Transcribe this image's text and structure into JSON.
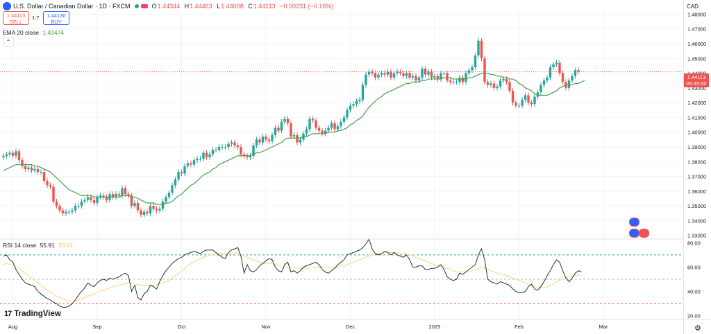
{
  "header": {
    "symbol_title": "U.S. Dollar / Canadian Dollar · 1D · FXCM",
    "ohlc": [
      {
        "key": "O",
        "value": "1.44344"
      },
      {
        "key": "H",
        "value": "1.44463"
      },
      {
        "key": "L",
        "value": "1.44008"
      },
      {
        "key": "C",
        "value": "1.44113"
      }
    ],
    "change": "−0.00231 (−0.16%)",
    "sell_price": "1.44113",
    "sell_label": "SELL",
    "buy_price": "1.44130",
    "buy_label": "BUY",
    "spread": "1.7"
  },
  "ema_legend": {
    "label": "EMA 20 close",
    "value": "1.43474"
  },
  "rsi_legend": {
    "label": "RSI 14 close",
    "value": "55.91",
    "ma_value": "53.41"
  },
  "currency": "CAD",
  "price_tag": {
    "price": "1.44113",
    "time": "09:45:00"
  },
  "logo_text": "TradingView",
  "colors": {
    "up": "#26a69a",
    "down": "#ef5350",
    "ema": "#43a047",
    "rsi": "#131722",
    "rsi_ma": "#f5d67a",
    "grid": "#f0f3fa"
  },
  "chart_data": [
    {
      "type": "candlestick",
      "title": "U.S. Dollar / Canadian Dollar · 1D · FXCM",
      "ylim": [
        1.328,
        1.483
      ],
      "y_ticks": [
        "1.48000",
        "1.47000",
        "1.46000",
        "1.45000",
        "1.44000",
        "1.43000",
        "1.42000",
        "1.41000",
        "1.40000",
        "1.39000",
        "1.38000",
        "1.37000",
        "1.36000",
        "1.35000",
        "1.34000",
        "1.33000"
      ],
      "x_ticks": [
        "Aug",
        "Sep",
        "Oct",
        "Nov",
        "Dec",
        "2025",
        "Feb",
        "Mar"
      ],
      "x_tick_index": [
        3,
        30,
        57,
        84,
        111,
        138,
        165,
        192
      ],
      "closes": [
        1.384,
        1.385,
        1.386,
        1.384,
        1.387,
        1.381,
        1.377,
        1.375,
        1.376,
        1.374,
        1.375,
        1.373,
        1.373,
        1.367,
        1.364,
        1.363,
        1.353,
        1.35,
        1.347,
        1.345,
        1.346,
        1.346,
        1.347,
        1.35,
        1.35,
        1.353,
        1.354,
        1.356,
        1.354,
        1.352,
        1.356,
        1.357,
        1.356,
        1.354,
        1.358,
        1.356,
        1.358,
        1.357,
        1.362,
        1.358,
        1.357,
        1.35,
        1.352,
        1.347,
        1.344,
        1.346,
        1.345,
        1.35,
        1.348,
        1.347,
        1.348,
        1.353,
        1.356,
        1.359,
        1.364,
        1.368,
        1.373,
        1.372,
        1.377,
        1.379,
        1.378,
        1.381,
        1.382,
        1.382,
        1.386,
        1.383,
        1.385,
        1.388,
        1.388,
        1.39,
        1.39,
        1.39,
        1.392,
        1.393,
        1.391,
        1.39,
        1.385,
        1.384,
        1.383,
        1.384,
        1.391,
        1.395,
        1.393,
        1.397,
        1.395,
        1.394,
        1.398,
        1.403,
        1.401,
        1.407,
        1.409,
        1.406,
        1.397,
        1.398,
        1.393,
        1.395,
        1.399,
        1.402,
        1.409,
        1.408,
        1.403,
        1.401,
        1.399,
        1.401,
        1.403,
        1.406,
        1.402,
        1.404,
        1.407,
        1.41,
        1.415,
        1.418,
        1.419,
        1.421,
        1.422,
        1.432,
        1.439,
        1.441,
        1.44,
        1.437,
        1.439,
        1.44,
        1.439,
        1.441,
        1.437,
        1.44,
        1.441,
        1.44,
        1.438,
        1.44,
        1.437,
        1.438,
        1.435,
        1.437,
        1.443,
        1.439,
        1.441,
        1.437,
        1.438,
        1.436,
        1.44,
        1.44,
        1.435,
        1.434,
        1.434,
        1.434,
        1.437,
        1.434,
        1.44,
        1.442,
        1.444,
        1.452,
        1.462,
        1.45,
        1.434,
        1.432,
        1.433,
        1.43,
        1.431,
        1.435,
        1.436,
        1.434,
        1.428,
        1.42,
        1.418,
        1.418,
        1.422,
        1.425,
        1.42,
        1.419,
        1.424,
        1.427,
        1.432,
        1.435,
        1.437,
        1.444,
        1.446,
        1.447,
        1.44,
        1.434,
        1.43,
        1.435,
        1.438,
        1.442,
        1.441
      ],
      "series": [
        {
          "name": "EMA 20 close",
          "values": [
            1.374,
            1.375,
            1.376,
            1.377,
            1.378,
            1.378,
            1.378,
            1.378,
            1.378,
            1.378,
            1.377,
            1.377,
            1.376,
            1.375,
            1.374,
            1.373,
            1.371,
            1.369,
            1.367,
            1.365,
            1.363,
            1.361,
            1.36,
            1.359,
            1.358,
            1.357,
            1.357,
            1.357,
            1.357,
            1.356,
            1.356,
            1.356,
            1.356,
            1.356,
            1.356,
            1.356,
            1.356,
            1.356,
            1.357,
            1.357,
            1.357,
            1.356,
            1.356,
            1.355,
            1.354,
            1.353,
            1.352,
            1.352,
            1.352,
            1.351,
            1.351,
            1.351,
            1.352,
            1.352,
            1.353,
            1.355,
            1.357,
            1.358,
            1.36,
            1.362,
            1.364,
            1.365,
            1.367,
            1.369,
            1.371,
            1.372,
            1.373,
            1.375,
            1.376,
            1.378,
            1.379,
            1.38,
            1.381,
            1.382,
            1.383,
            1.384,
            1.384,
            1.384,
            1.384,
            1.384,
            1.385,
            1.386,
            1.386,
            1.387,
            1.388,
            1.389,
            1.39,
            1.391,
            1.392,
            1.393,
            1.395,
            1.396,
            1.396,
            1.396,
            1.396,
            1.396,
            1.397,
            1.397,
            1.398,
            1.399,
            1.399,
            1.399,
            1.399,
            1.399,
            1.4,
            1.4,
            1.4,
            1.401,
            1.401,
            1.402,
            1.403,
            1.405,
            1.406,
            1.408,
            1.409,
            1.411,
            1.414,
            1.417,
            1.419,
            1.421,
            1.423,
            1.424,
            1.426,
            1.427,
            1.428,
            1.429,
            1.43,
            1.431,
            1.432,
            1.433,
            1.433,
            1.434,
            1.434,
            1.434,
            1.435,
            1.435,
            1.436,
            1.436,
            1.436,
            1.436,
            1.436,
            1.437,
            1.437,
            1.437,
            1.436,
            1.436,
            1.436,
            1.436,
            1.436,
            1.437,
            1.437,
            1.438,
            1.439,
            1.44,
            1.44,
            1.44,
            1.439,
            1.439,
            1.438,
            1.438,
            1.437,
            1.437,
            1.436,
            1.436,
            1.435,
            1.433,
            1.432,
            1.43,
            1.429,
            1.428,
            1.426,
            1.425,
            1.425,
            1.425,
            1.425,
            1.426,
            1.427,
            1.428,
            1.43,
            1.431,
            1.432,
            1.432,
            1.432,
            1.433,
            1.433,
            1.434,
            1.435
          ]
        }
      ],
      "annotations": [
        "1.44113",
        "09:45:00"
      ]
    },
    {
      "type": "line",
      "title": "RSI 14 close",
      "ylim": [
        17,
        83
      ],
      "y_ticks": [
        "80.00",
        "60.00",
        "40.00",
        "20.00"
      ],
      "levels": [
        70,
        50,
        30
      ],
      "series": [
        {
          "name": "RSI 14 close",
          "values": [
            69,
            70,
            66,
            64,
            58,
            54,
            50,
            47,
            46,
            45,
            44,
            40,
            38,
            36,
            34,
            33,
            31,
            30,
            28,
            27,
            27,
            28,
            30,
            33,
            37,
            40,
            43,
            47,
            45,
            44,
            47,
            49,
            50,
            49,
            51,
            50,
            51,
            52,
            54,
            55,
            53,
            40,
            45,
            35,
            33,
            38,
            40,
            45,
            44,
            42,
            48,
            53,
            57,
            60,
            63,
            65,
            67,
            68,
            70,
            71,
            72,
            73,
            72,
            71,
            73,
            74,
            74,
            74,
            72,
            70,
            68,
            67,
            72,
            74,
            75,
            76,
            69,
            55,
            62,
            57,
            56,
            58,
            61,
            63,
            65,
            67,
            66,
            60,
            57,
            56,
            62,
            64,
            56,
            57,
            55,
            57,
            60,
            61,
            62,
            63,
            64,
            62,
            58,
            56,
            55,
            57,
            59,
            62,
            64,
            66,
            70,
            71,
            72,
            73,
            74,
            76,
            79,
            83,
            75,
            71,
            70,
            71,
            73,
            72,
            70,
            72,
            70,
            69,
            68,
            70,
            66,
            60,
            60,
            61,
            61,
            58,
            58,
            59,
            59,
            60,
            62,
            58,
            52,
            50,
            49,
            50,
            55,
            54,
            56,
            58,
            60,
            62,
            70,
            75,
            66,
            50,
            48,
            47,
            46,
            48,
            47,
            46,
            45,
            42,
            40,
            39,
            39,
            40,
            44,
            46,
            42,
            41,
            44,
            48,
            53,
            57,
            62,
            66,
            64,
            57,
            51,
            48,
            51,
            55,
            57,
            56
          ]
        },
        {
          "name": "MA",
          "values": [
            62,
            63,
            62,
            61,
            60,
            59,
            57,
            55,
            53,
            51,
            49,
            47,
            45,
            43,
            41,
            39,
            38,
            36,
            35,
            34,
            33,
            32,
            32,
            32,
            33,
            34,
            35,
            36,
            37,
            38,
            39,
            40,
            41,
            42,
            43,
            44,
            45,
            45,
            46,
            46,
            47,
            47,
            46,
            46,
            45,
            45,
            45,
            45,
            45,
            45,
            46,
            47,
            48,
            49,
            51,
            53,
            55,
            57,
            59,
            61,
            63,
            64,
            66,
            67,
            68,
            69,
            70,
            70,
            71,
            71,
            71,
            71,
            71,
            71,
            72,
            72,
            71,
            69,
            68,
            67,
            66,
            65,
            64,
            63,
            63,
            63,
            63,
            62,
            61,
            60,
            60,
            60,
            60,
            60,
            59,
            59,
            59,
            59,
            59,
            60,
            60,
            60,
            60,
            60,
            60,
            60,
            60,
            60,
            61,
            61,
            62,
            63,
            64,
            65,
            66,
            67,
            68,
            69,
            70,
            71,
            71,
            71,
            72,
            72,
            72,
            72,
            72,
            71,
            71,
            71,
            70,
            69,
            68,
            67,
            66,
            65,
            64,
            63,
            62,
            61,
            61,
            60,
            59,
            58,
            57,
            56,
            56,
            56,
            56,
            56,
            57,
            58,
            59,
            60,
            59,
            58,
            57,
            56,
            55,
            54,
            54,
            53,
            52,
            51,
            50,
            49,
            48,
            47,
            46,
            45,
            44,
            43,
            43,
            43,
            44,
            45,
            46,
            48,
            49,
            50,
            51,
            52,
            53,
            53,
            54,
            53
          ]
        }
      ]
    }
  ]
}
